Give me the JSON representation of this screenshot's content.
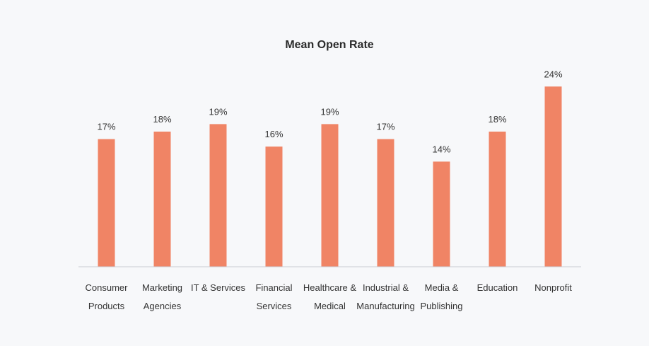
{
  "chart_data": {
    "type": "bar",
    "title": "Mean Open Rate",
    "xlabel": "",
    "ylabel": "",
    "categories": [
      [
        "Consumer",
        "Products"
      ],
      [
        "Marketing",
        "Agencies"
      ],
      [
        "IT & Services"
      ],
      [
        "Financial",
        "Services"
      ],
      [
        "Healthcare &",
        "Medical"
      ],
      [
        "Industrial &",
        "Manufacturing"
      ],
      [
        "Media &",
        "Publishing"
      ],
      [
        "Education"
      ],
      [
        "Nonprofit"
      ]
    ],
    "values": [
      17,
      18,
      19,
      16,
      19,
      17,
      14,
      18,
      24
    ],
    "value_labels": [
      "17%",
      "18%",
      "19%",
      "16%",
      "19%",
      "17%",
      "14%",
      "18%",
      "24%"
    ],
    "ylim": [
      0,
      24.5
    ],
    "grid": false,
    "legend": "none",
    "bar_color": "#f08465",
    "axis_color": "#c8ccd2"
  }
}
